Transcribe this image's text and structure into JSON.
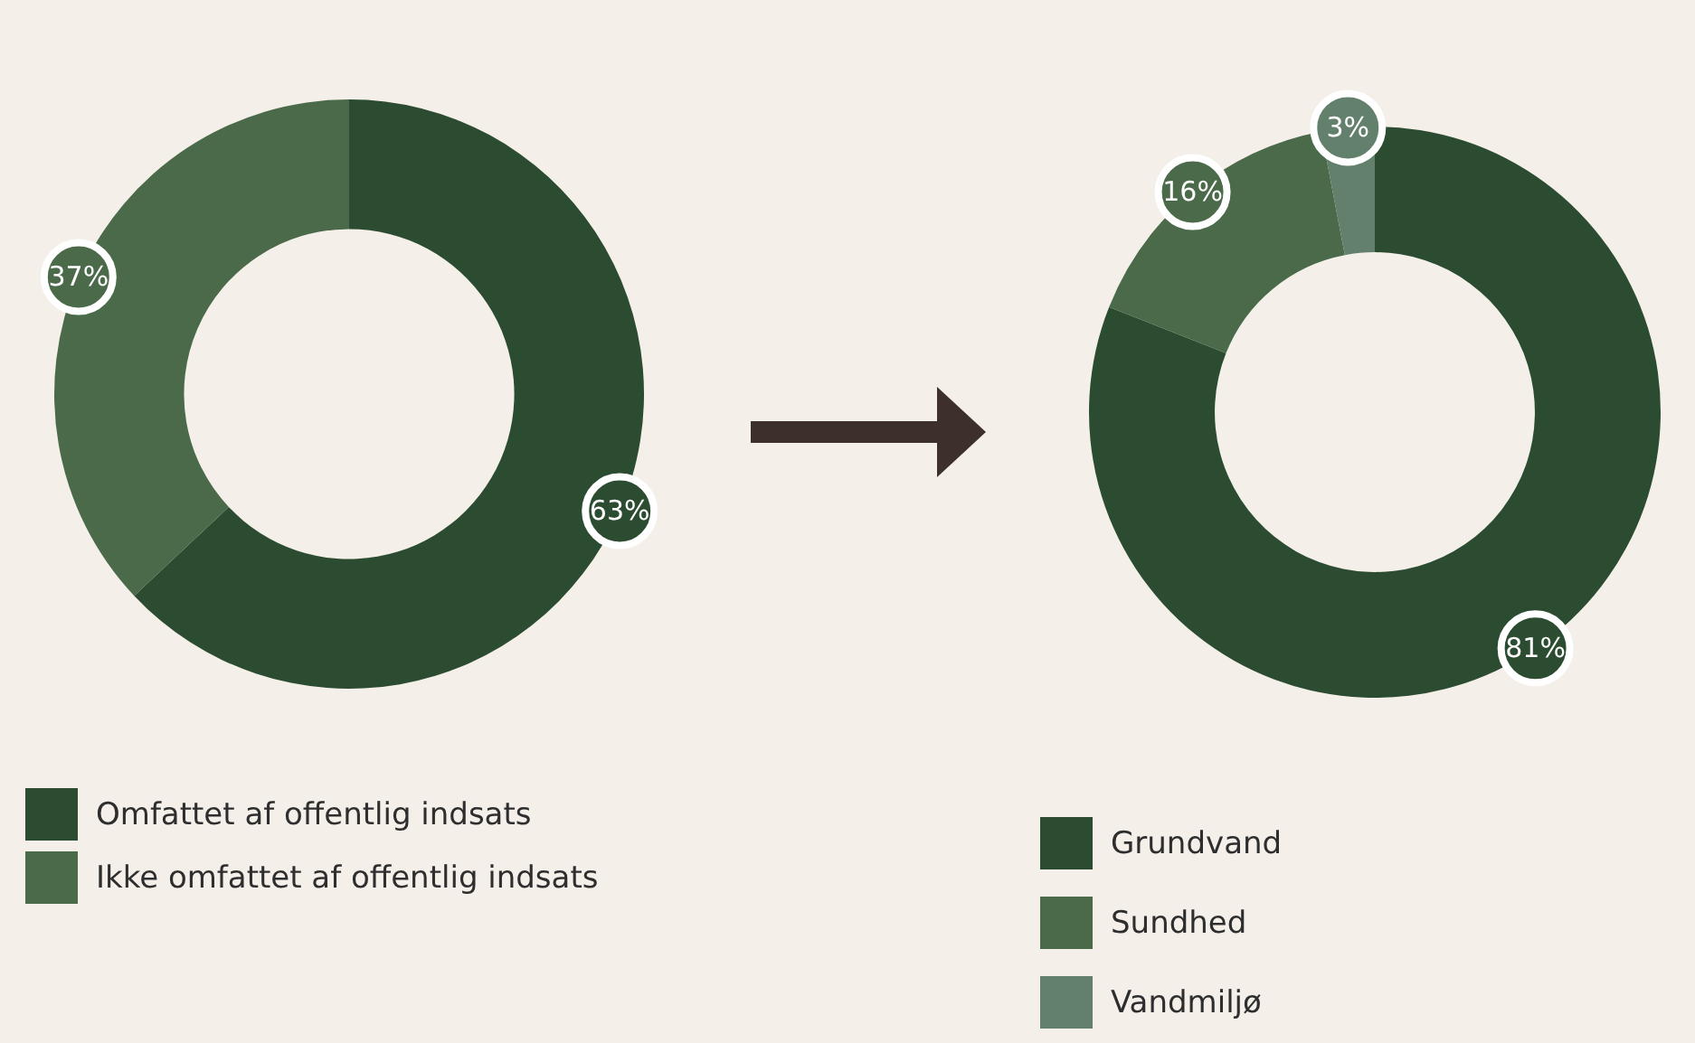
{
  "chart_data": [
    {
      "type": "donut",
      "categories": [
        "Omfattet af offentlig indsats",
        "Ikke omfattet af offentlig indsats"
      ],
      "values": [
        63,
        37
      ],
      "colors": [
        "#2b4c30",
        "#4a6a4a"
      ],
      "value_labels": [
        "63%",
        "37%"
      ],
      "legend": "bottom left"
    },
    {
      "type": "donut",
      "categories": [
        "Grundvand",
        "Sundhed",
        "Vandmiljø"
      ],
      "values": [
        81,
        16,
        3
      ],
      "colors": [
        "#2b4c30",
        "#4a6a4a",
        "#62806b"
      ],
      "value_labels": [
        "81%",
        "16%",
        "3%"
      ],
      "legend": "bottom left"
    }
  ]
}
